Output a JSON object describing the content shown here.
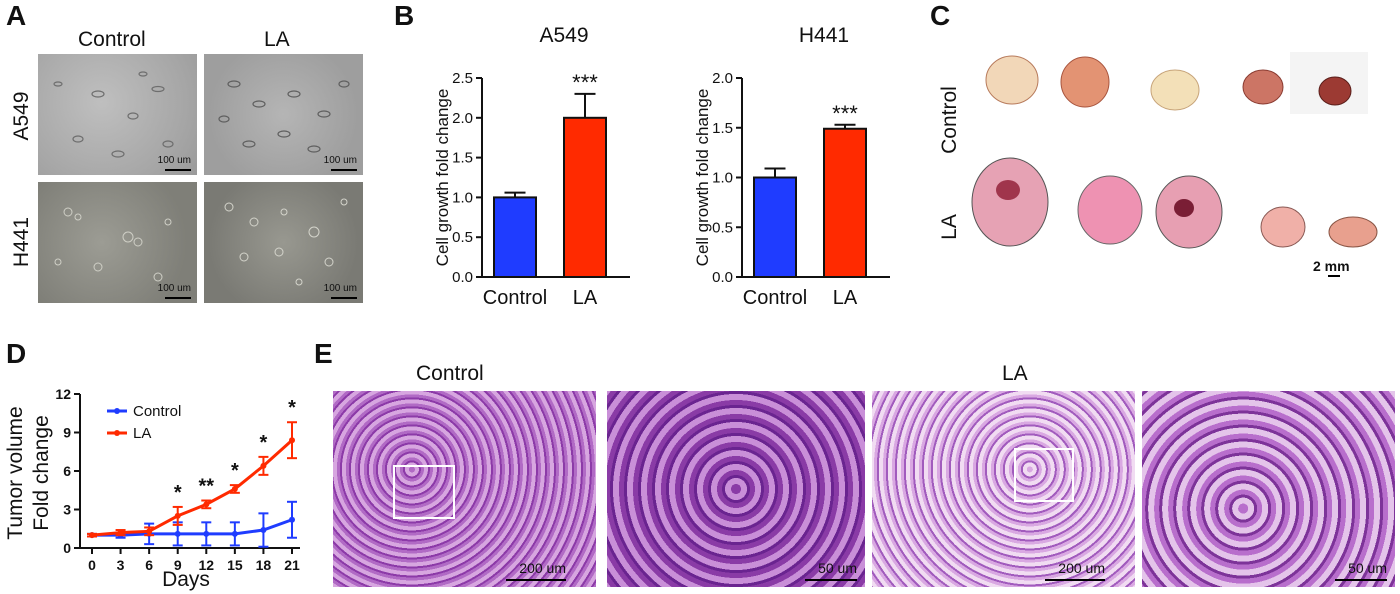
{
  "panels": {
    "A": "A",
    "B": "B",
    "C": "C",
    "D": "D",
    "E": "E"
  },
  "panel_a": {
    "col_labels": [
      "Control",
      "LA"
    ],
    "row_labels": [
      "A549",
      "H441"
    ],
    "scale_label": "100 um"
  },
  "panel_c": {
    "row_labels": [
      "Control",
      "LA"
    ],
    "scale_label": "2 mm"
  },
  "panel_e": {
    "group_labels": [
      "Control",
      "LA"
    ],
    "scale_labels": [
      "200 um",
      "50 um",
      "200 um",
      "50 um"
    ]
  },
  "colors": {
    "control": "#1f3cff",
    "la": "#ff2a00",
    "axis": "#111111"
  },
  "chart_data": [
    {
      "type": "bar",
      "title": "A549",
      "ylabel": "Cell growth fold change",
      "categories": [
        "Control",
        "LA"
      ],
      "values": [
        1.0,
        2.0
      ],
      "errors": [
        0.06,
        0.3
      ],
      "ylim": [
        0,
        2.5
      ],
      "yticks": [
        "0.0",
        "0.5",
        "1.0",
        "1.5",
        "2.0",
        "2.5"
      ],
      "significance": [
        "",
        "***"
      ]
    },
    {
      "type": "bar",
      "title": "H441",
      "ylabel": "Cell growth fold change",
      "categories": [
        "Control",
        "LA"
      ],
      "values": [
        1.0,
        1.49
      ],
      "errors": [
        0.09,
        0.04
      ],
      "ylim": [
        0,
        2.0
      ],
      "yticks": [
        "0.0",
        "0.5",
        "1.0",
        "1.5",
        "2.0"
      ],
      "significance": [
        "",
        "***"
      ]
    },
    {
      "type": "line",
      "ylabel": "Tumor volume\nFold change",
      "xlabel": "Days",
      "x": [
        0,
        3,
        6,
        9,
        12,
        15,
        18,
        21
      ],
      "xticks": [
        "0",
        "3",
        "6",
        "9",
        "12",
        "15",
        "18",
        "21"
      ],
      "ylim": [
        0,
        12
      ],
      "yticks": [
        "0",
        "3",
        "6",
        "9",
        "12"
      ],
      "legend": "top-left",
      "series": [
        {
          "name": "Control",
          "values": [
            1.0,
            1.0,
            1.1,
            1.1,
            1.1,
            1.1,
            1.4,
            2.2
          ],
          "errors": [
            0.1,
            0.2,
            0.8,
            0.9,
            0.9,
            0.9,
            1.3,
            1.4
          ]
        },
        {
          "name": "LA",
          "values": [
            1.0,
            1.2,
            1.3,
            2.5,
            3.4,
            4.6,
            6.4,
            8.4
          ],
          "errors": [
            0.1,
            0.2,
            0.3,
            0.7,
            0.3,
            0.3,
            0.7,
            1.4
          ]
        }
      ],
      "significance": [
        "",
        "",
        "",
        "*",
        "**",
        "*",
        "*",
        "*"
      ]
    }
  ]
}
